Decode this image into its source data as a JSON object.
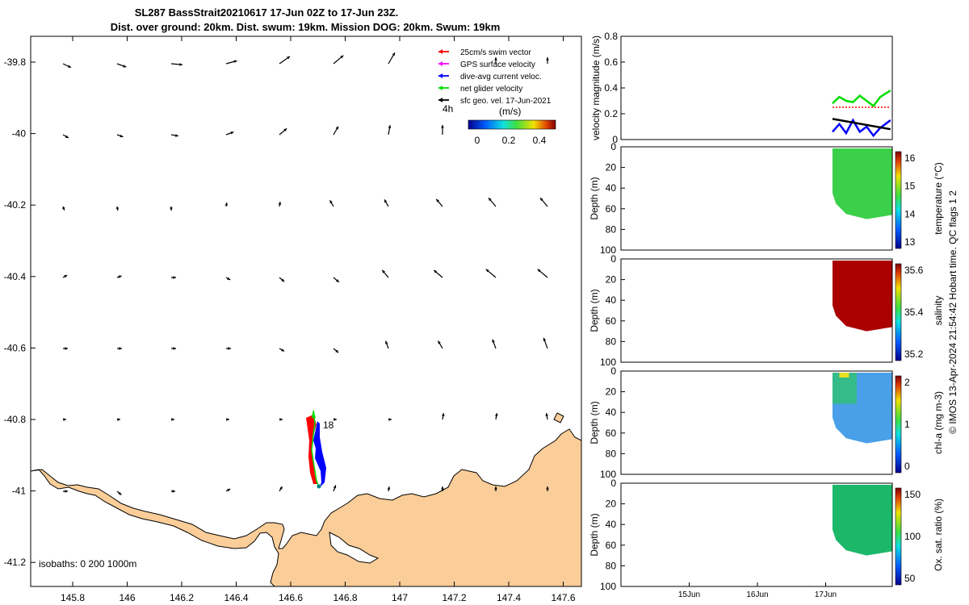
{
  "title": {
    "line1": "SL287 BassStrait20210617 17-Jun 02Z to 17-Jun 23Z.",
    "line2": "Dist. over ground: 20km. Dist. swum: 19km. Mission DOG: 20km. Swum: 19km"
  },
  "map": {
    "x_ticks": [
      "145.8",
      "146",
      "146.2",
      "146.4",
      "146.6",
      "146.8",
      "147",
      "147.2",
      "147.4",
      "147.6"
    ],
    "y_ticks": [
      "-39.8",
      "-40",
      "-40.2",
      "-40.4",
      "-40.6",
      "-40.8",
      "-41",
      "-41.2"
    ],
    "isobaths_label": "isobaths: 0   200  1000m",
    "track_label": "18",
    "legend": [
      {
        "label": "25cm/s swim vector",
        "color": "#ff0000"
      },
      {
        "label": "GPS surface velocity",
        "color": "#ff00ff"
      },
      {
        "label": "dive-avg current veloc.",
        "color": "#0000ff"
      },
      {
        "label": "net glider velocity",
        "color": "#00dd00"
      },
      {
        "label": "sfc geo. vel. 17-Jun-2021",
        "color": "#000000"
      }
    ],
    "legend_note": "4h",
    "colorbar_unit": "(m/s)",
    "colorbar_ticks": [
      "0",
      "0.2",
      "0.4"
    ],
    "land_color": "#fbcd98"
  },
  "chart_data": [
    {
      "type": "line",
      "ylabel": "velocity magnitude (m/s)",
      "ylim": [
        0,
        0.8
      ],
      "y_ticks": [
        "0",
        "0.2",
        "0.4",
        "0.6",
        "0.8"
      ],
      "x_ticks": [
        "15Jun",
        "16Jun",
        "17Jun"
      ],
      "series": [
        {
          "color": "#00dd00",
          "x": [
            17.1,
            17.2,
            17.3,
            17.4,
            17.5,
            17.6,
            17.7,
            17.8,
            17.95
          ],
          "values": [
            0.28,
            0.33,
            0.3,
            0.29,
            0.34,
            0.3,
            0.26,
            0.33,
            0.38
          ]
        },
        {
          "color": "#0000ff",
          "x": [
            17.1,
            17.2,
            17.3,
            17.4,
            17.5,
            17.6,
            17.7,
            17.8,
            17.95
          ],
          "values": [
            0.06,
            0.12,
            0.05,
            0.15,
            0.06,
            0.1,
            0.03,
            0.09,
            0.15
          ]
        },
        {
          "color": "#000000",
          "x": [
            17.1,
            17.95
          ],
          "values": [
            0.16,
            0.08
          ]
        },
        {
          "color": "#ff0000",
          "x": [
            17.1,
            17.95
          ],
          "values": [
            0.25,
            0.25
          ]
        }
      ]
    },
    {
      "type": "heatmap",
      "ylabel": "Depth (m)",
      "clabel": "temperature (°C)",
      "y_ticks": [
        "0",
        "20",
        "40",
        "60",
        "80",
        "100"
      ],
      "cbar_ticks": [
        "16",
        "15",
        "14",
        "13"
      ],
      "crange": [
        12,
        17
      ],
      "dominant_color": "#3bd04a"
    },
    {
      "type": "heatmap",
      "ylabel": "Depth (m)",
      "clabel": "salinity",
      "y_ticks": [
        "0",
        "20",
        "40",
        "60",
        "80",
        "100"
      ],
      "cbar_ticks": [
        "35.6",
        "35.4",
        "35.2"
      ],
      "crange": [
        35.1,
        35.7
      ],
      "dominant_color": "#aa0000"
    },
    {
      "type": "heatmap",
      "ylabel": "Depth (m)",
      "clabel": "chl-a (mg m-3)",
      "y_ticks": [
        "0",
        "20",
        "40",
        "60",
        "80",
        "100"
      ],
      "cbar_ticks": [
        "2",
        "1",
        "0"
      ],
      "crange": [
        0,
        2
      ],
      "dominant_color": "#4aa0e8"
    },
    {
      "type": "heatmap",
      "ylabel": "Depth (m)",
      "clabel": "Ox. sat. ratio (%)",
      "y_ticks": [
        "0",
        "20",
        "40",
        "60",
        "80",
        "100"
      ],
      "cbar_ticks": [
        "150",
        "100",
        "50"
      ],
      "crange": [
        20,
        170
      ],
      "dominant_color": "#1bb86a"
    }
  ],
  "footer_text": "© IMOS 13-Apr-2024 21:54:42 Hobart time. QC flags 1  2"
}
